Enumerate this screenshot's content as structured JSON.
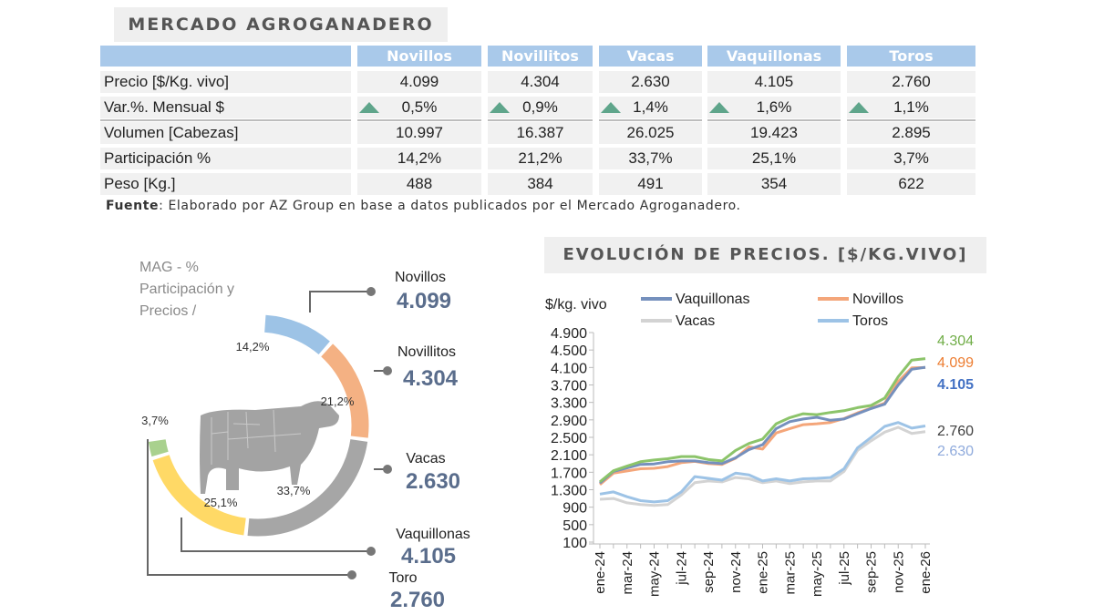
{
  "main_title": "MERCADO AGROGANADERO",
  "table": {
    "columns": [
      "Novillos",
      "Novillitos",
      "Vacas",
      "Vaquillonas",
      "Toros"
    ],
    "rows": [
      {
        "label": "Precio [$/Kg. vivo]",
        "values": [
          "4.099",
          "4.304",
          "2.630",
          "4.105",
          "2.760"
        ],
        "arrow": false
      },
      {
        "label": "Var.%. Mensual $",
        "values": [
          "0,5%",
          "0,9%",
          "1,4%",
          "1,6%",
          "1,1%"
        ],
        "arrow": true
      },
      {
        "label": "Volumen [Cabezas]",
        "values": [
          "10.997",
          "16.387",
          "26.025",
          "19.423",
          "2.895"
        ],
        "arrow": false
      },
      {
        "label": "Participación %",
        "values": [
          "14,2%",
          "21,2%",
          "33,7%",
          "25,1%",
          "3,7%"
        ],
        "arrow": false
      },
      {
        "label": "Peso  [Kg.]",
        "values": [
          "488",
          "384",
          "491",
          "354",
          "622"
        ],
        "arrow": false
      }
    ]
  },
  "source": {
    "label": "Fuente",
    "text": ": Elaborado por AZ Group en base a datos publicados por el Mercado Agroganadero."
  },
  "colors": {
    "header": "#a9c9ea",
    "up_arrow": "#5fa58b",
    "price_label": "#5a6d8c"
  },
  "chart_data": [
    {
      "type": "pie",
      "title": [
        "MAG - %",
        "Participación y",
        "Precios /"
      ],
      "slices": [
        {
          "name": "Novillos",
          "percent": 14.2,
          "percent_label": "14,2%",
          "price_label": "4.099",
          "color": "#9dc3e6"
        },
        {
          "name": "Novillitos",
          "percent": 21.2,
          "percent_label": "21,2%",
          "price_label": "4.304",
          "color": "#f4b183"
        },
        {
          "name": "Vacas",
          "percent": 33.7,
          "percent_label": "33,7%",
          "price_label": "2.630",
          "color": "#a6a6a6"
        },
        {
          "name": "Vaquillonas",
          "percent": 25.1,
          "percent_label": "25,1%",
          "price_label": "4.105",
          "color": "#ffd966"
        },
        {
          "name": "Toro",
          "percent": 3.7,
          "percent_label": "3,7%",
          "price_label": "2.760",
          "color": "#a9d18e"
        }
      ]
    },
    {
      "type": "line",
      "title": "EVOLUCIÓN DE PRECIOS. [$/KG.VIVO]",
      "ylabel": "$/kg. vivo",
      "ylim": [
        100,
        4900
      ],
      "yticks": [
        "4.900",
        "4.500",
        "4.100",
        "3.700",
        "3.300",
        "2.900",
        "2.500",
        "2.100",
        "1.700",
        "1.300",
        "900",
        "500",
        "100"
      ],
      "ytick_values": [
        4900,
        4500,
        4100,
        3700,
        3300,
        2900,
        2500,
        2100,
        1700,
        1300,
        900,
        500,
        100
      ],
      "x": [
        "ene-24",
        "feb-24",
        "mar-24",
        "abr-24",
        "may-24",
        "jun-24",
        "jul-24",
        "ago-24",
        "sep-24",
        "oct-24",
        "nov-24",
        "dic-24",
        "ene-25",
        "feb-25",
        "mar-25",
        "abr-25",
        "may-25",
        "jun-25",
        "jul-25",
        "ago-25",
        "sep-25",
        "oct-25",
        "nov-25",
        "dic-25",
        "ene-26"
      ],
      "xtick_labels": [
        "ene-24",
        "mar-24",
        "may-24",
        "jul-24",
        "sep-24",
        "nov-24",
        "ene-25",
        "mar-25",
        "may-25",
        "jul-25",
        "sep-25",
        "nov-25",
        "ene-26"
      ],
      "series": [
        {
          "name": "Vacas",
          "legend": true,
          "color": "#d3d3d3",
          "end_label": "2.630",
          "end_color": "#8faadc",
          "values": [
            1080,
            1100,
            1000,
            960,
            940,
            960,
            1180,
            1460,
            1500,
            1480,
            1580,
            1550,
            1460,
            1500,
            1440,
            1480,
            1500,
            1500,
            1720,
            2200,
            2420,
            2620,
            2730,
            2590,
            2630
          ]
        },
        {
          "name": "Toros",
          "legend": true,
          "color": "#9dc3e6",
          "end_label": "2.760",
          "end_color": "#404040",
          "values": [
            1200,
            1250,
            1140,
            1050,
            1020,
            1050,
            1250,
            1600,
            1560,
            1520,
            1680,
            1640,
            1500,
            1550,
            1500,
            1550,
            1560,
            1580,
            1780,
            2260,
            2500,
            2750,
            2840,
            2710,
            2760
          ]
        },
        {
          "name": "Novillos",
          "legend": true,
          "color": "#f4a67a",
          "end_label": "4.099",
          "end_color": "#ed7d31",
          "values": [
            1420,
            1680,
            1730,
            1780,
            1790,
            1830,
            1920,
            1950,
            1900,
            1880,
            2020,
            2280,
            2230,
            2600,
            2700,
            2790,
            2810,
            2840,
            2930,
            3060,
            3170,
            3280,
            3780,
            4090,
            4099
          ]
        },
        {
          "name": "Vaquillonas",
          "legend": true,
          "color": "#7590bd",
          "end_label": "4.105",
          "end_color": "#4472c4",
          "values": [
            1450,
            1720,
            1800,
            1880,
            1890,
            1940,
            1960,
            1960,
            1920,
            1900,
            2030,
            2220,
            2330,
            2700,
            2860,
            2920,
            2960,
            2890,
            2920,
            3040,
            3160,
            3260,
            3700,
            4060,
            4105
          ]
        },
        {
          "name": "Novillitos",
          "legend": false,
          "color": "#8cc46a",
          "end_label": "4.304",
          "end_color": "#70ad47",
          "values": [
            1480,
            1735,
            1840,
            1940,
            1980,
            2010,
            2060,
            2060,
            1990,
            1960,
            2200,
            2360,
            2460,
            2810,
            2950,
            3040,
            3020,
            3070,
            3110,
            3180,
            3230,
            3400,
            3890,
            4270,
            4304
          ]
        }
      ],
      "legend_placement": "top"
    }
  ]
}
